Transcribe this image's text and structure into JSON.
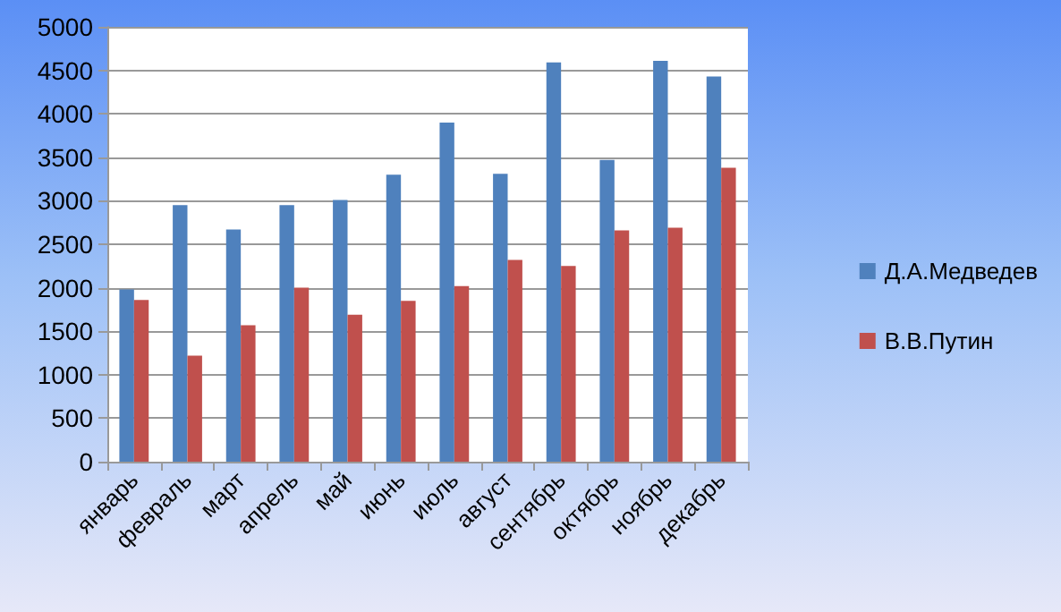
{
  "chart_data": {
    "type": "bar",
    "categories": [
      "январь",
      "февраль",
      "март",
      "апрель",
      "май",
      "июнь",
      "июль",
      "август",
      "сентябрь",
      "октябрь",
      "ноябрь",
      "декабрь"
    ],
    "series": [
      {
        "name": "Д.А.Медведев",
        "color": "#4f81bd",
        "values": [
          1980,
          2950,
          2670,
          2950,
          3010,
          3300,
          3900,
          3310,
          4590,
          3470,
          4610,
          4430
        ]
      },
      {
        "name": "В.В.Путин",
        "color": "#c0504d",
        "values": [
          1860,
          1220,
          1570,
          2000,
          1690,
          1850,
          2020,
          2320,
          2250,
          2660,
          2690,
          3380
        ]
      }
    ],
    "ylim": [
      0,
      5000
    ],
    "yticks": [
      0,
      500,
      1000,
      1500,
      2000,
      2500,
      3000,
      3500,
      4000,
      4500,
      5000
    ],
    "grid": "y",
    "legend": "right"
  }
}
